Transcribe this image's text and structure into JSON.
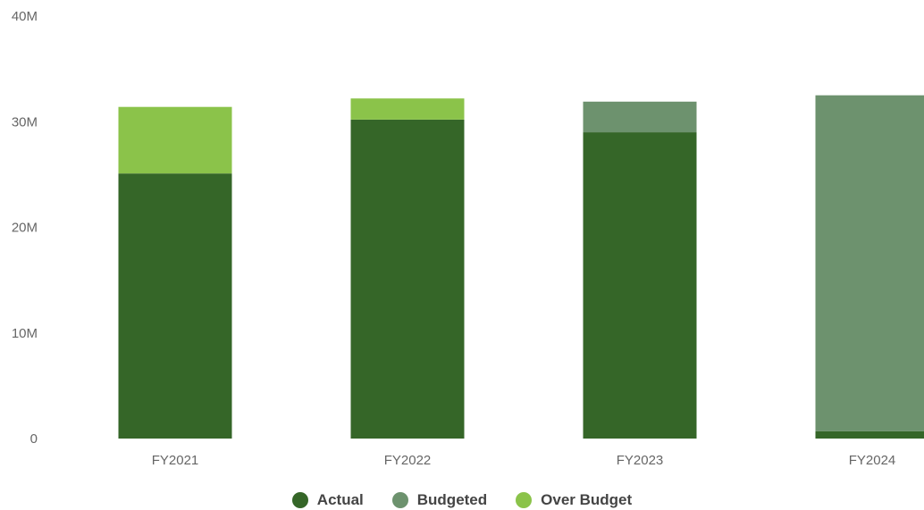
{
  "chart_data": {
    "type": "bar",
    "stacked": true,
    "categories": [
      "FY2021",
      "FY2022",
      "FY2023",
      "FY2024"
    ],
    "series": [
      {
        "name": "Actual",
        "color": "#356628",
        "values": [
          25.1,
          30.2,
          29.0,
          0.7
        ]
      },
      {
        "name": "Budgeted",
        "color": "#6d926e",
        "values": [
          0,
          0,
          2.9,
          31.8
        ]
      },
      {
        "name": "Over Budget",
        "color": "#8bc34a",
        "values": [
          6.3,
          2.0,
          0,
          0
        ]
      }
    ],
    "yticks": [
      "0",
      "10M",
      "20M",
      "30M",
      "40M"
    ],
    "ylim": [
      0,
      40
    ],
    "grid": false,
    "legend_position": "bottom-center"
  }
}
